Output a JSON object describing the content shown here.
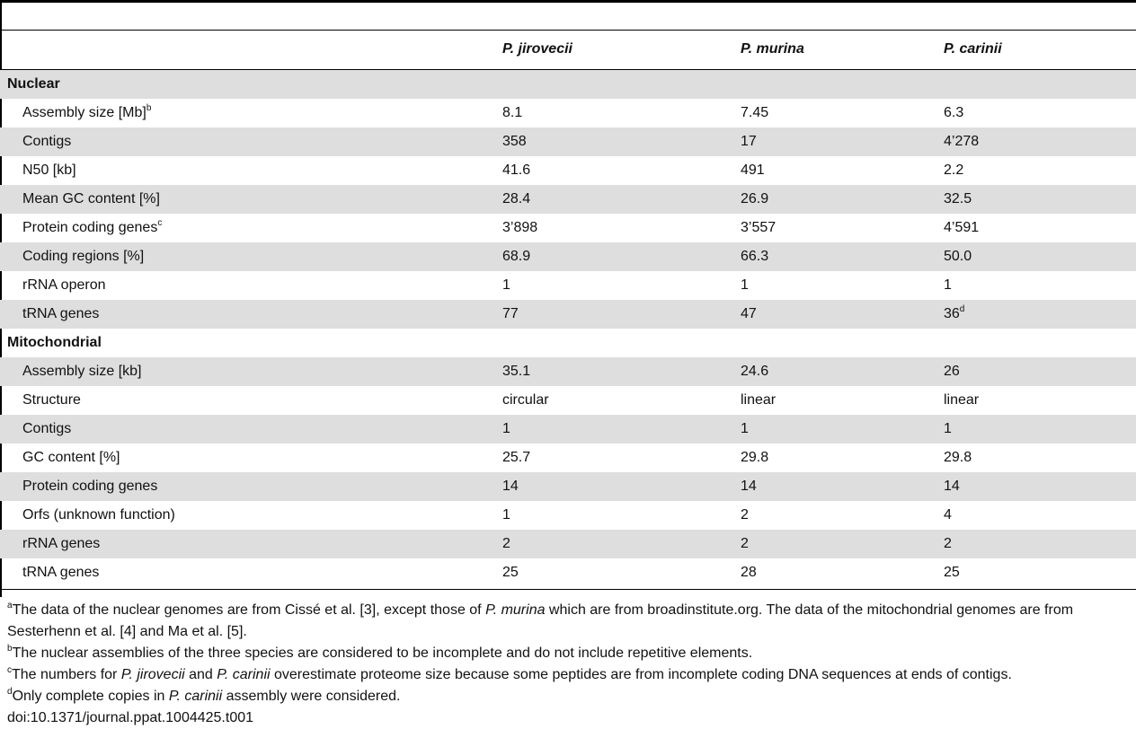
{
  "header": {
    "columns": [
      "P. jirovecii",
      "P. murina",
      "P. carinii"
    ]
  },
  "rows": [
    {
      "type": "section",
      "label": "Nuclear",
      "shade": true
    },
    {
      "type": "data",
      "label": "Assembly size [Mb]",
      "sup": "b",
      "values": [
        "8.1",
        "7.45",
        "6.3"
      ],
      "shade": false
    },
    {
      "type": "data",
      "label": "Contigs",
      "values": [
        "358",
        "17",
        "4’278"
      ],
      "shade": true
    },
    {
      "type": "data",
      "label": "N50 [kb]",
      "values": [
        "41.6",
        "491",
        "2.2"
      ],
      "shade": false
    },
    {
      "type": "data",
      "label": "Mean GC content [%]",
      "values": [
        "28.4",
        "26.9",
        "32.5"
      ],
      "shade": true
    },
    {
      "type": "data",
      "label": "Protein coding genes",
      "sup": "c",
      "values": [
        "3’898",
        "3’557",
        "4’591"
      ],
      "shade": false
    },
    {
      "type": "data",
      "label": "Coding regions [%]",
      "values": [
        "68.9",
        "66.3",
        "50.0"
      ],
      "shade": true
    },
    {
      "type": "data",
      "label": "rRNA operon",
      "values": [
        "1",
        "1",
        "1"
      ],
      "shade": false
    },
    {
      "type": "data",
      "label": "tRNA genes",
      "values": [
        "77",
        "47",
        "36"
      ],
      "value_sups": [
        "",
        "",
        "d"
      ],
      "shade": true
    },
    {
      "type": "section",
      "label": "Mitochondrial",
      "shade": false
    },
    {
      "type": "data",
      "label": "Assembly size [kb]",
      "values": [
        "35.1",
        "24.6",
        "26"
      ],
      "shade": true
    },
    {
      "type": "data",
      "label": "Structure",
      "values": [
        "circular",
        "linear",
        "linear"
      ],
      "shade": false
    },
    {
      "type": "data",
      "label": "Contigs",
      "values": [
        "1",
        "1",
        "1"
      ],
      "shade": true
    },
    {
      "type": "data",
      "label": "GC content [%]",
      "values": [
        "25.7",
        "29.8",
        "29.8"
      ],
      "shade": false
    },
    {
      "type": "data",
      "label": "Protein coding genes",
      "values": [
        "14",
        "14",
        "14"
      ],
      "shade": true
    },
    {
      "type": "data",
      "label": "Orfs (unknown function)",
      "values": [
        "1",
        "2",
        "4"
      ],
      "shade": false
    },
    {
      "type": "data",
      "label": "rRNA genes",
      "values": [
        "2",
        "2",
        "2"
      ],
      "shade": true
    },
    {
      "type": "data",
      "label": "tRNA genes",
      "values": [
        "25",
        "28",
        "25"
      ],
      "shade": false
    }
  ],
  "footnotes": {
    "a": {
      "mark": "a",
      "text_1": "The data of the nuclear genomes are from Cissé et al. [3], except those of ",
      "italic_1": "P. murina",
      "text_2": " which are from broadinstitute.org. The data of the mitochondrial genomes are from Sesterhenn et al. [4] and Ma et al. [5]."
    },
    "b": {
      "mark": "b",
      "text": "The nuclear assemblies of the three species are considered to be incomplete and do not include repetitive elements."
    },
    "c": {
      "mark": "c",
      "text_1": "The numbers for ",
      "italic_1": "P. jirovecii",
      "text_2": " and ",
      "italic_2": "P. carinii",
      "text_3": " overestimate proteome size because some peptides are from incomplete coding DNA sequences at ends of contigs."
    },
    "d": {
      "mark": "d",
      "text_1": "Only complete copies in ",
      "italic_1": "P. carinii",
      "text_2": " assembly were considered."
    },
    "doi": "doi:10.1371/journal.ppat.1004425.t001"
  }
}
